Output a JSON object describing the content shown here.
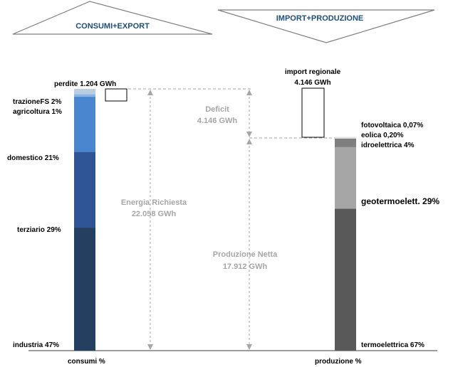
{
  "headers": {
    "left": "CONSUMI+EXPORT",
    "right": "IMPORT+PRODUZIONE"
  },
  "colors": {
    "header_text": "#1f4e79",
    "callout_text": "#a6a6a6",
    "guide_lines": "#a6a6a6"
  },
  "chart_data": {
    "type": "bar",
    "stacked": true,
    "categories": [
      "consumi %",
      "produzione %"
    ],
    "units": "%",
    "series": [
      {
        "category": "consumi %",
        "segments": [
          {
            "name": "industria",
            "label": "industria 47%",
            "value": 47,
            "color": "#243f60"
          },
          {
            "name": "terziario",
            "label": "terziario 29%",
            "value": 29,
            "color": "#2f5597"
          },
          {
            "name": "domestico",
            "label": "domestico 21%",
            "value": 21,
            "color": "#4a86d0"
          },
          {
            "name": "agricoltura",
            "label": "agricoltura 1%",
            "value": 1,
            "color": "#8eb4e3"
          },
          {
            "name": "trazioneFS",
            "label": "trazioneFS 2%",
            "value": 2,
            "color": "#b9cde5"
          }
        ]
      },
      {
        "category": "produzione %",
        "segments": [
          {
            "name": "termoelettrica",
            "label": "termoelettrica 67%",
            "value": 67,
            "color": "#595959"
          },
          {
            "name": "geotermoelett.",
            "label": "geotermoelett. 29%",
            "value": 29,
            "color": "#a6a6a6"
          },
          {
            "name": "idroelettrica",
            "label": "idroelettrica 4%",
            "value": 4,
            "color": "#7f7f7f"
          },
          {
            "name": "eolica",
            "label": "eolica 0,20%",
            "value": 0.2,
            "color": "#d9d9d9"
          },
          {
            "name": "fotovoltaica",
            "label": "fotovoltaica 0,07%",
            "value": 0.07,
            "color": "#eeeeee"
          }
        ]
      }
    ],
    "energy_gwh": {
      "energia_richiesta": 22058,
      "produzione_netta": 17912,
      "deficit": 4146,
      "import_regionale": 4146,
      "perdite": 1204
    },
    "annotations": {
      "perdite": "perdite 1.204 GWh",
      "import_title": "import regionale",
      "import_value": "4.146 GWh",
      "deficit_title": "Deficit",
      "deficit_value": "4.146 GWh",
      "energia_title": "Energia Richiesta",
      "energia_value": "22.058 GWh",
      "produzione_title": "Produzione Netta",
      "produzione_value": "17.912 GWh"
    }
  }
}
